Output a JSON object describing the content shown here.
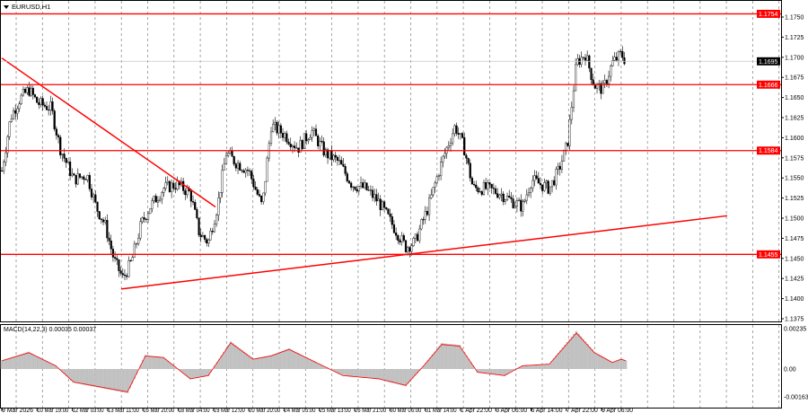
{
  "window": {
    "symbol_title": "EURUSD,H1"
  },
  "macd": {
    "label": "MACD(14,22,3) 0.00035 0.00037"
  },
  "chart_data": [
    {
      "type": "candlestick",
      "title": "EURUSD,H1",
      "ylim": [
        1.1375,
        1.176
      ],
      "y_ticks": [
        "1.1750",
        "1.1725",
        "1.1700",
        "1.1675",
        "1.1650",
        "1.1625",
        "1.1600",
        "1.1575",
        "1.1550",
        "1.1525",
        "1.1500",
        "1.1475",
        "1.1450",
        "1.1425",
        "1.1400",
        "1.1375"
      ],
      "x_tick_labels": [
        "9 Mar 2026",
        "10 Mar 19:00",
        "12 Mar 03:00",
        "13 Mar 11:00",
        "16 Mar 20:00",
        "18 Mar 04:00",
        "19 Mar 12:00",
        "20 Mar 20:00",
        "24 Mar 05:00",
        "25 Mar 13:00",
        "26 Mar 21:00",
        "30 Mar 06:00",
        "31 Mar 14:00",
        "1 Apr 22:00",
        "3 Apr 06:00",
        "6 Apr 14:00",
        "7 Apr 22:00",
        "9 Apr 06:00"
      ],
      "current_price": "1.1695",
      "price_path_bar_close": [
        [
          0,
          1.1559
        ],
        [
          2,
          1.1626
        ],
        [
          4,
          1.1648
        ],
        [
          6,
          1.166
        ],
        [
          8,
          1.1643
        ],
        [
          11,
          1.1637
        ],
        [
          13,
          1.1587
        ],
        [
          16,
          1.1548
        ],
        [
          19,
          1.1554
        ],
        [
          21,
          1.1514
        ],
        [
          23,
          1.1492
        ],
        [
          25,
          1.1448
        ],
        [
          27,
          1.1425
        ],
        [
          29,
          1.1448
        ],
        [
          31,
          1.1492
        ],
        [
          33,
          1.1514
        ],
        [
          36,
          1.1537
        ],
        [
          39,
          1.1542
        ],
        [
          42,
          1.1531
        ],
        [
          44,
          1.1481
        ],
        [
          46,
          1.147
        ],
        [
          48,
          1.1514
        ],
        [
          50,
          1.1581
        ],
        [
          52,
          1.157
        ],
        [
          55,
          1.1559
        ],
        [
          58,
          1.1514
        ],
        [
          60,
          1.1615
        ],
        [
          63,
          1.1604
        ],
        [
          66,
          1.1587
        ],
        [
          69,
          1.1609
        ],
        [
          72,
          1.1581
        ],
        [
          75,
          1.157
        ],
        [
          78,
          1.1542
        ],
        [
          81,
          1.1537
        ],
        [
          84,
          1.152
        ],
        [
          87,
          1.1492
        ],
        [
          90,
          1.1464
        ],
        [
          92,
          1.147
        ],
        [
          95,
          1.1514
        ],
        [
          98,
          1.157
        ],
        [
          101,
          1.1615
        ],
        [
          103,
          1.1587
        ],
        [
          105,
          1.1537
        ],
        [
          108,
          1.1537
        ],
        [
          111,
          1.1531
        ],
        [
          114,
          1.152
        ],
        [
          116,
          1.1514
        ],
        [
          118,
          1.1548
        ],
        [
          120,
          1.1542
        ],
        [
          122,
          1.1537
        ],
        [
          124,
          1.1559
        ],
        [
          126,
          1.1592
        ],
        [
          128,
          1.1693
        ],
        [
          130,
          1.1704
        ],
        [
          132,
          1.1665
        ],
        [
          134,
          1.166
        ],
        [
          136,
          1.1693
        ],
        [
          138,
          1.1704
        ],
        [
          139,
          1.1695
        ]
      ],
      "levels": [
        {
          "label": "1.1754",
          "price": 1.1754
        },
        {
          "label": "1.1666",
          "price": 1.1666
        },
        {
          "label": "1.1584",
          "price": 1.1584
        },
        {
          "label": "1.1455",
          "price": 1.1455
        }
      ],
      "trendlines": [
        {
          "from": [
            0,
            1.1699
          ],
          "to": [
            47.6,
            1.1514
          ]
        },
        {
          "from": [
            26.6,
            1.1412
          ],
          "to": [
            161.6,
            1.1503
          ]
        }
      ],
      "colors": {
        "level": "#ff0000",
        "candle": "#000000",
        "grid": "#808080",
        "current_price_bg": "#000000"
      }
    },
    {
      "type": "histogram",
      "title": "MACD(14,22,3) 0.00035 0.00037",
      "ylim": [
        -0.00163,
        0.00235
      ],
      "y_ticks": [
        "0.00235",
        "0.00",
        "-0.00163"
      ],
      "histogram_bar_value": [
        [
          0,
          0.0005
        ],
        [
          6,
          0.001
        ],
        [
          12,
          0.0002
        ],
        [
          16,
          -0.0008
        ],
        [
          24,
          -0.0012
        ],
        [
          28,
          -0.0014
        ],
        [
          32,
          0.0008
        ],
        [
          36,
          0.0007
        ],
        [
          42,
          -0.0006
        ],
        [
          46,
          -0.0004
        ],
        [
          51,
          0.0016
        ],
        [
          56,
          0.0006
        ],
        [
          60,
          0.0008
        ],
        [
          64,
          0.0012
        ],
        [
          70,
          0.0004
        ],
        [
          76,
          -0.0004
        ],
        [
          84,
          -0.0006
        ],
        [
          90,
          -0.001
        ],
        [
          94,
          0.0002
        ],
        [
          98,
          0.0015
        ],
        [
          102,
          0.0014
        ],
        [
          106,
          -0.0002
        ],
        [
          112,
          -0.0004
        ],
        [
          116,
          0.0002
        ],
        [
          122,
          0.0003
        ],
        [
          128,
          0.0022
        ],
        [
          132,
          0.001
        ],
        [
          136,
          0.0004
        ],
        [
          138,
          0.0006
        ],
        [
          139,
          0.0005
        ]
      ],
      "colors": {
        "histogram": "#c0c0c0",
        "signal": "#ff0000"
      }
    }
  ]
}
